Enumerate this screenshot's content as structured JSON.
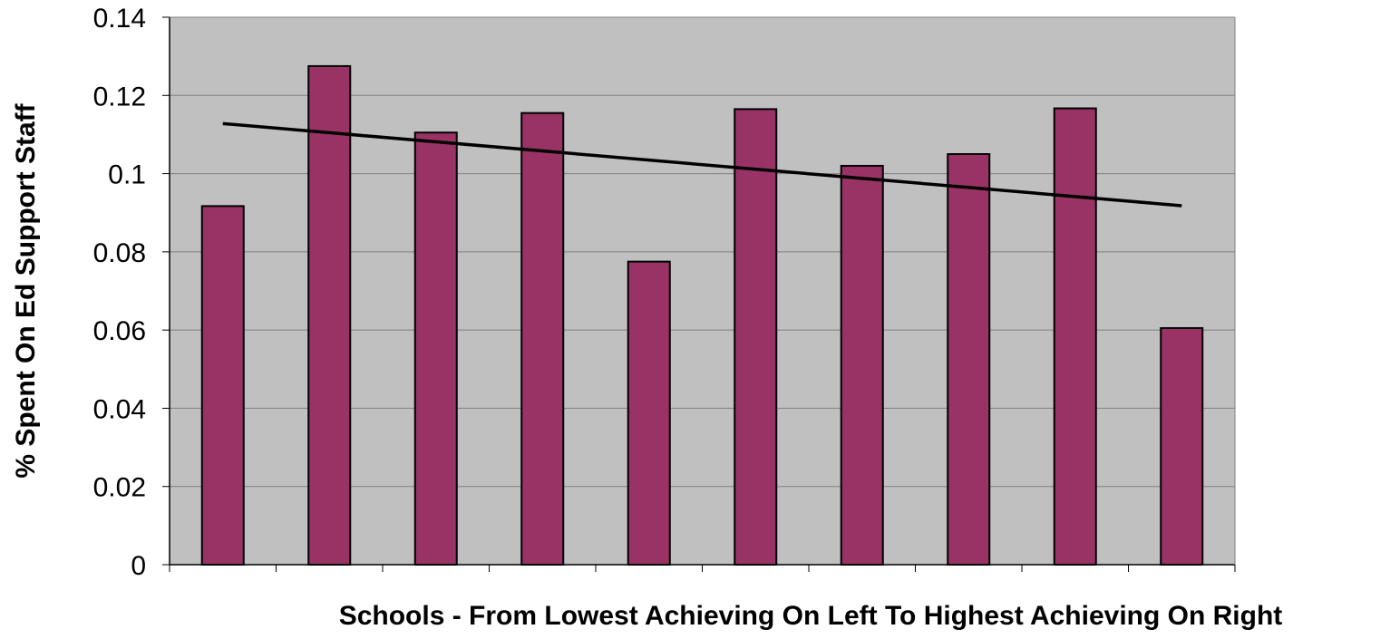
{
  "chart_data": {
    "type": "bar",
    "title": "",
    "xlabel": "Schools - From Lowest Achieving On Left To Highest Achieving On Right",
    "ylabel": "% Spent On Ed Support Staff",
    "categories": [
      "",
      "",
      "",
      "",
      "",
      "",
      "",
      "",
      "",
      ""
    ],
    "series": [
      {
        "values": [
          0.0917,
          0.1275,
          0.1105,
          0.1155,
          0.0775,
          0.1165,
          0.102,
          0.105,
          0.1167,
          0.0605
        ]
      }
    ],
    "trendline": {
      "type": "linear",
      "start": 0.1128,
      "end": 0.0918
    },
    "yticks": [
      "0",
      "0.02",
      "0.04",
      "0.06",
      "0.08",
      "0.1",
      "0.12",
      "0.14"
    ],
    "ylim": [
      0,
      0.14
    ],
    "grid": true,
    "legend": "none",
    "colors": {
      "bar_fill": "#993366",
      "bar_stroke": "#000000",
      "plot_background": "#c0c0c0",
      "gridline": "#808080",
      "trendline": "#000000"
    }
  }
}
